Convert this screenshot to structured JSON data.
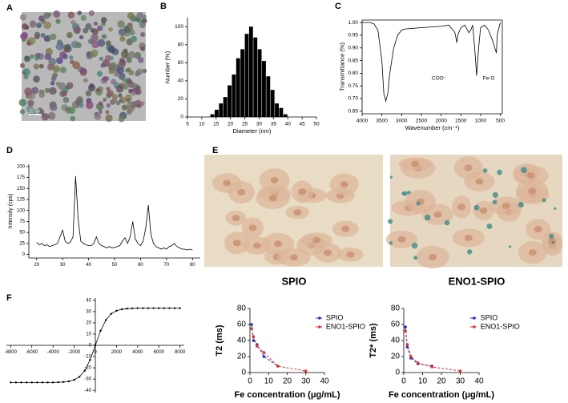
{
  "images": [
    {
      "panel": "A",
      "scale_bar": "20 nm"
    },
    {
      "panel": "E",
      "captions": [
        "SPIO",
        "ENO1-SPIO"
      ]
    }
  ],
  "chart_data": [
    {
      "type": "histogram",
      "panel": "B",
      "xlabel": "Diameter (nm)",
      "ylabel": "Number (%)",
      "color": "#000000",
      "bins": [
        13,
        14.5,
        16,
        17.5,
        19,
        20.5,
        22,
        23.5,
        25,
        26.5,
        28,
        29.5,
        31,
        32.5,
        34,
        35.5,
        37,
        38.5,
        40
      ],
      "values": [
        3,
        8,
        15,
        22,
        35,
        47,
        65,
        75,
        92,
        100,
        88,
        75,
        62,
        45,
        30,
        15,
        10,
        3
      ],
      "xlim": [
        5,
        50
      ],
      "xticks": [
        5,
        10,
        15,
        20,
        25,
        30,
        35,
        40,
        45,
        50
      ],
      "ylim": [
        0,
        110
      ],
      "yticks": [
        0,
        20,
        40,
        60,
        80,
        100
      ]
    },
    {
      "type": "line",
      "panel": "C",
      "xlabel": "Wavenumber (cm⁻¹)",
      "ylabel": "Transmittance (%)",
      "color": "#000000",
      "frame": true,
      "annotations": [
        "COO⁻",
        "Fe-O"
      ],
      "x": [
        4000,
        3800,
        3700,
        3600,
        3500,
        3450,
        3400,
        3350,
        3300,
        3200,
        3100,
        3000,
        2900,
        2500,
        2000,
        1800,
        1650,
        1600,
        1580,
        1500,
        1400,
        1300,
        1250,
        1200,
        1150,
        1100,
        1050,
        1000,
        900,
        800,
        700,
        600,
        580,
        550,
        500
      ],
      "values": [
        1.0,
        1.0,
        0.995,
        0.97,
        0.85,
        0.72,
        0.69,
        0.72,
        0.8,
        0.9,
        0.95,
        0.97,
        0.975,
        0.98,
        0.985,
        0.99,
        0.96,
        0.92,
        0.95,
        0.98,
        0.99,
        0.96,
        0.97,
        0.99,
        0.9,
        0.79,
        0.9,
        0.98,
        0.99,
        0.97,
        0.93,
        0.88,
        0.95,
        0.97,
        1.0
      ],
      "xlim": [
        4000,
        450
      ],
      "xticks": [
        4000,
        3500,
        3000,
        2500,
        2000,
        1500,
        1000,
        500
      ],
      "ylim": [
        0.64,
        1.01
      ],
      "yticks": [
        {
          "value": 0.65,
          "label": "0.65"
        },
        {
          "value": 0.7,
          "label": "0.70"
        },
        {
          "value": 0.75,
          "label": "0.75"
        },
        {
          "value": 0.8,
          "label": "0.80"
        },
        {
          "value": 0.85,
          "label": "0.85"
        },
        {
          "value": 0.9,
          "label": "0.90"
        },
        {
          "value": 0.95,
          "label": "0.95"
        },
        {
          "value": 1,
          "label": "1.00"
        }
      ]
    },
    {
      "type": "line",
      "panel": "D",
      "ylabel": "Intensity (cps)",
      "color": "#000000",
      "x": [
        20,
        21,
        22,
        23,
        24,
        25,
        26,
        27,
        28,
        29,
        30,
        31,
        32,
        33,
        34,
        35,
        36,
        37,
        38,
        39,
        40,
        41,
        42,
        43,
        44,
        45,
        46,
        47,
        48,
        49,
        50,
        51,
        52,
        53,
        54,
        55,
        56,
        57,
        58,
        59,
        60,
        61,
        62,
        63,
        64,
        65,
        66,
        67,
        68,
        69,
        70,
        71,
        72,
        73,
        74,
        75,
        76,
        77,
        78,
        79,
        80
      ],
      "values": [
        28,
        22,
        25,
        20,
        22,
        18,
        20,
        22,
        25,
        40,
        55,
        30,
        25,
        28,
        40,
        178,
        80,
        30,
        25,
        22,
        20,
        20,
        25,
        40,
        25,
        20,
        18,
        15,
        18,
        15,
        16,
        18,
        20,
        30,
        38,
        25,
        40,
        75,
        35,
        25,
        20,
        30,
        60,
        112,
        45,
        25,
        18,
        15,
        12,
        15,
        12,
        18,
        20,
        25,
        18,
        15,
        12,
        12,
        10,
        12,
        10
      ],
      "xlim": [
        17,
        83
      ],
      "xticks": [
        20,
        30,
        40,
        50,
        60,
        70,
        80
      ],
      "ylim": [
        -8,
        205
      ],
      "yticks": [
        0,
        25,
        50,
        75,
        100,
        125,
        150,
        175,
        200
      ]
    },
    {
      "type": "line",
      "panel": "F",
      "axes_at_zero": true,
      "markers": true,
      "color": "#000000",
      "x": [
        -8000,
        -7500,
        -7000,
        -6500,
        -6000,
        -5500,
        -5000,
        -4500,
        -4000,
        -3500,
        -3000,
        -2500,
        -2000,
        -1500,
        -1000,
        -500,
        0,
        500,
        1000,
        1500,
        2000,
        2500,
        3000,
        3500,
        4000,
        4500,
        5000,
        5500,
        6000,
        6500,
        7000,
        7500,
        8000
      ],
      "values": [
        -33,
        -33,
        -33,
        -33,
        -33,
        -33,
        -33,
        -33,
        -33,
        -32.8,
        -32.6,
        -32,
        -30.7,
        -28,
        -22.5,
        -13,
        0,
        13,
        22.5,
        28,
        30.7,
        32,
        32.6,
        32.8,
        33,
        33,
        33,
        33,
        33,
        33,
        33,
        33,
        33
      ],
      "xlim": [
        -8400,
        8400
      ],
      "xticks": [
        -8000,
        -6000,
        -4000,
        -2000,
        0,
        2000,
        4000,
        6000,
        8000
      ],
      "ylim": [
        -42,
        42
      ],
      "yticks": [
        -40,
        -30,
        -20,
        -10,
        0,
        10,
        20,
        30,
        40
      ]
    },
    {
      "type": "line",
      "xlabel": "Fe concentration (μg/mL)",
      "ylabel": "T2 (ms)",
      "markers": true,
      "dashed": true,
      "legend": "upper right",
      "x": [
        0.9,
        1.9,
        3.8,
        7.5,
        15,
        30
      ],
      "series": [
        {
          "name": "SPIO",
          "color": "#2233bb",
          "values": [
            60,
            40,
            35,
            20,
            8,
            null
          ]
        },
        {
          "name": "ENO1-SPIO",
          "color": "#e03030",
          "values": [
            55,
            45,
            33,
            25,
            8,
            2
          ]
        }
      ],
      "xlim": [
        0,
        40
      ],
      "xticks": [
        0,
        10,
        20,
        30,
        40
      ],
      "ylim": [
        0,
        80
      ],
      "yticks": [
        0,
        20,
        40,
        60,
        80
      ]
    },
    {
      "type": "line",
      "xlabel": "Fe concentration (μg/mL)",
      "ylabel": "T2* (ms)",
      "markers": true,
      "dashed": true,
      "legend": "upper right",
      "x": [
        0.9,
        1.9,
        3.8,
        7.5,
        15,
        30
      ],
      "series": [
        {
          "name": "SPIO",
          "color": "#2233bb",
          "values": [
            57,
            32,
            18,
            11,
            8,
            null
          ]
        },
        {
          "name": "ENO1-SPIO",
          "color": "#e03030",
          "values": [
            52,
            35,
            20,
            12,
            7,
            2
          ]
        }
      ],
      "xlim": [
        0,
        40
      ],
      "xticks": [
        0,
        10,
        20,
        30,
        40
      ],
      "ylim": [
        0,
        80
      ],
      "yticks": [
        0,
        20,
        40,
        60,
        80
      ]
    }
  ]
}
